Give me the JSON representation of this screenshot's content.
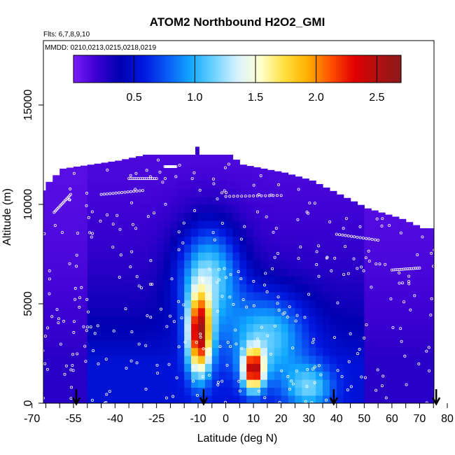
{
  "chart_data": {
    "type": "heatmap",
    "title": "ATOM2 Northbound H2O2_GMI",
    "flights_label": "Flts: 6,7,8,9,10",
    "mmdd_label": "MMDD: 0210,0213,0215,0218,0219",
    "xlabel": "Latitude (deg N)",
    "ylabel": "Altitude (m)",
    "xlim": [
      -70,
      85
    ],
    "ylim": [
      0,
      17500
    ],
    "x_ticks": [
      -70,
      -55,
      -40,
      -25,
      -10,
      0,
      10,
      20,
      30,
      40,
      50,
      60,
      70,
      80
    ],
    "x_ticks_minor": [
      -65,
      -60,
      -50,
      -45,
      -35,
      -30,
      -20,
      -15,
      -5,
      5,
      15,
      25,
      35,
      45,
      55,
      65,
      75
    ],
    "y_ticks": [
      0,
      5000,
      10000,
      15000
    ],
    "colorbar": {
      "range": [
        0,
        2.7
      ],
      "ticks": [
        "0.5",
        "1.0",
        "1.5",
        "2.0",
        "2.5"
      ],
      "tick_values": [
        0.5,
        1.0,
        1.5,
        2.0,
        2.5
      ],
      "palette": [
        "#7a1dfa",
        "#3a00d0",
        "#0000b0",
        "#0018e0",
        "#0a5af5",
        "#10a8ff",
        "#6ed2ff",
        "#d8f2ff",
        "#ffffcc",
        "#ffe040",
        "#ffb000",
        "#ff5000",
        "#e00000",
        "#b01010",
        "#8b1a1a"
      ]
    },
    "flight_markers_latitude": [
      -54,
      -8,
      39,
      76
    ],
    "grid": false,
    "legend": "colorbar top"
  }
}
